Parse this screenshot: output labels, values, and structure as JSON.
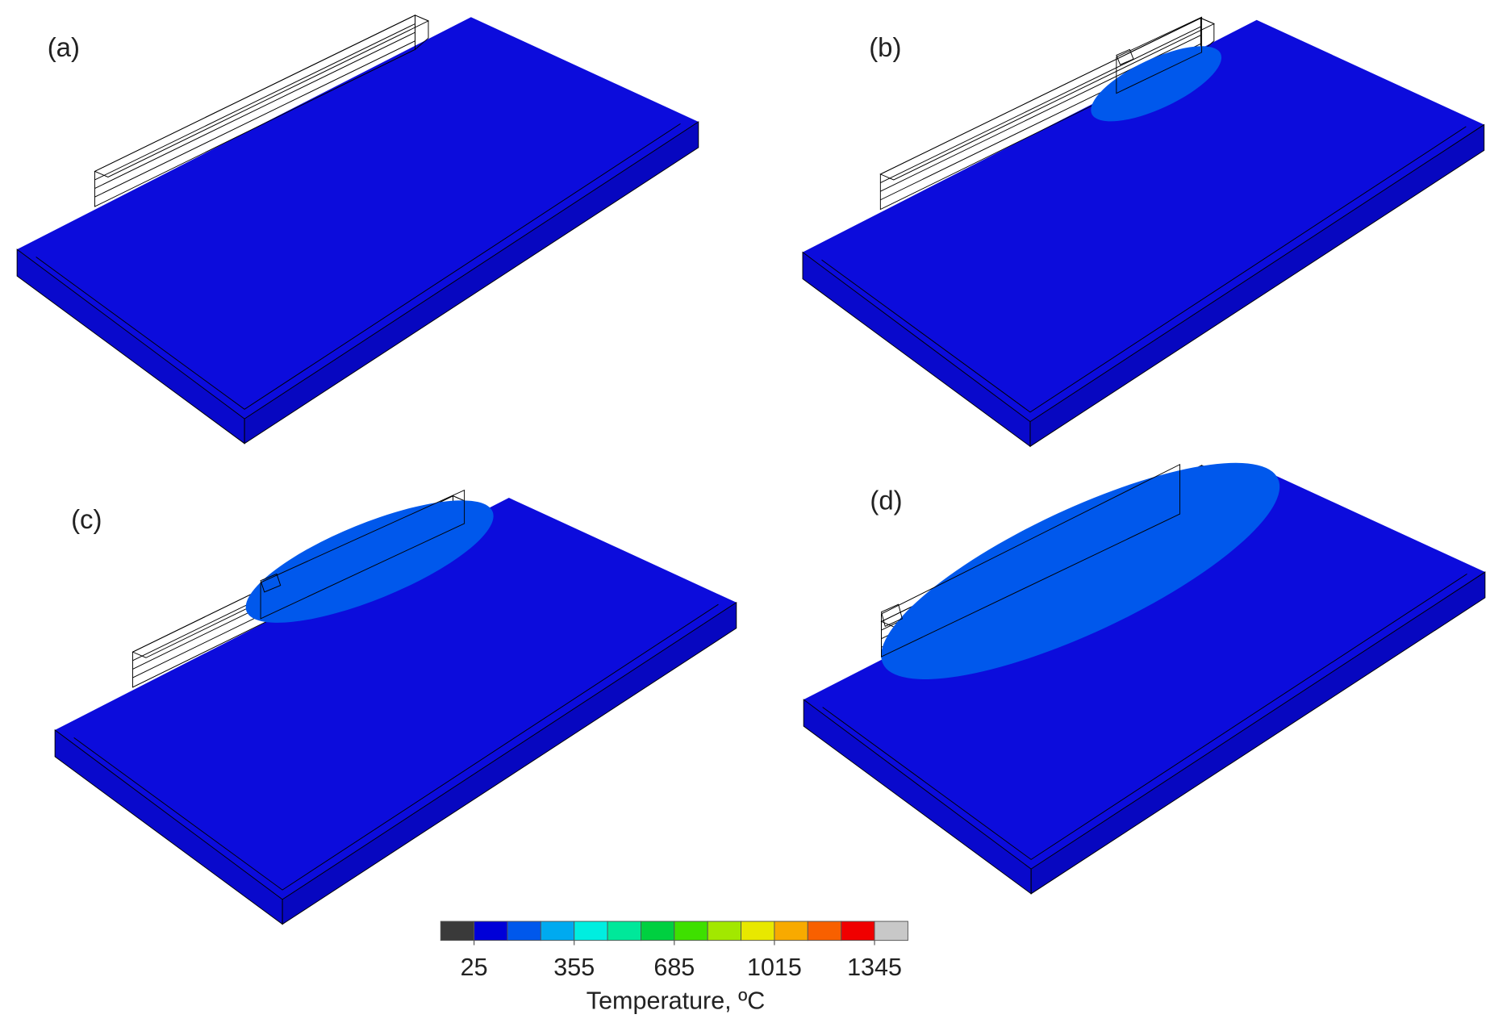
{
  "panels": [
    {
      "label": "(a)"
    },
    {
      "label": "(b)"
    },
    {
      "label": "(c)"
    },
    {
      "label": "(d)"
    }
  ],
  "colorbar": {
    "title": "Temperature, ºC",
    "colors": [
      "#3a3a3a",
      "#0000d8",
      "#0058ec",
      "#00aaf0",
      "#00eee0",
      "#00e89a",
      "#00d040",
      "#3ee000",
      "#a2e800",
      "#e8e800",
      "#f8aa00",
      "#f86000",
      "#f00000",
      "#c8c8c8"
    ],
    "xlim": [
      -85,
      1455
    ],
    "xticks": [
      25,
      355,
      685,
      1015,
      1345
    ]
  }
}
